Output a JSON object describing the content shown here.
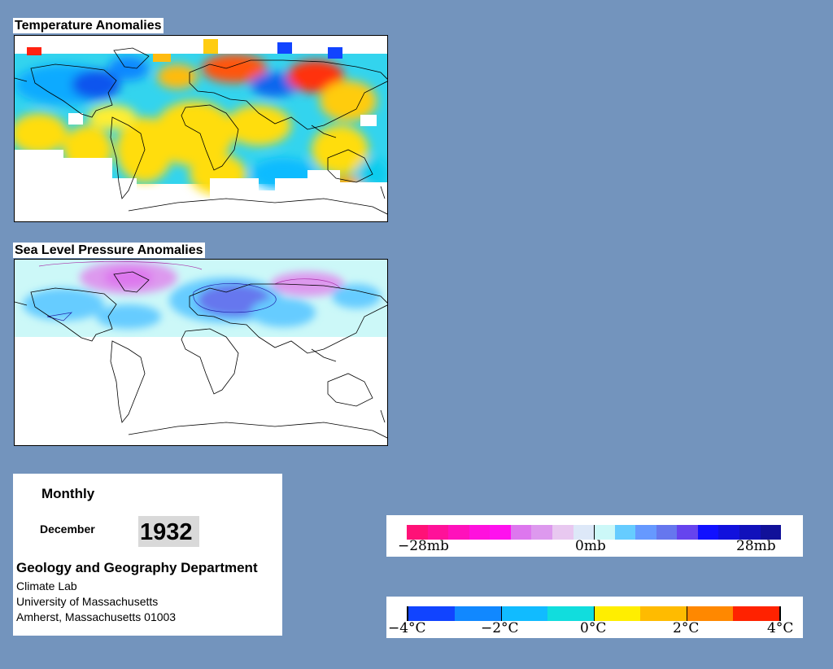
{
  "temperature_panel": {
    "title": "Temperature Anomalies"
  },
  "pressure_panel": {
    "title": "Sea Level Pressure Anomalies"
  },
  "info_box": {
    "period": "Monthly",
    "month": "December",
    "year": "1932",
    "department": "Geology and Geography Department",
    "lab": "Climate Lab",
    "university": "University of Massachusetts",
    "address": "Amherst, Massachusetts 01003"
  },
  "pressure_legend": {
    "labels": [
      "−28mb",
      "0mb",
      "28mb"
    ],
    "colors": [
      "#ff1177",
      "#ff1199",
      "#ff11bb",
      "#ff11dd",
      "#ff11ee",
      "#dd77ee",
      "#dd99ee",
      "#e8c8f0",
      "#dde8f8",
      "#ccf8f8",
      "#66ccff",
      "#6699ff",
      "#6677ee",
      "#6644ee",
      "#1111ff",
      "#1111dd",
      "#1111bb",
      "#111199"
    ]
  },
  "temperature_legend": {
    "labels": [
      "−4°C",
      "−2°C",
      "0°C",
      "2°C",
      "4°C"
    ],
    "colors": [
      "#1144ff",
      "#1188ff",
      "#11bbff",
      "#11dddd",
      "#ffee00",
      "#ffbb00",
      "#ff8800",
      "#ff2200"
    ]
  }
}
